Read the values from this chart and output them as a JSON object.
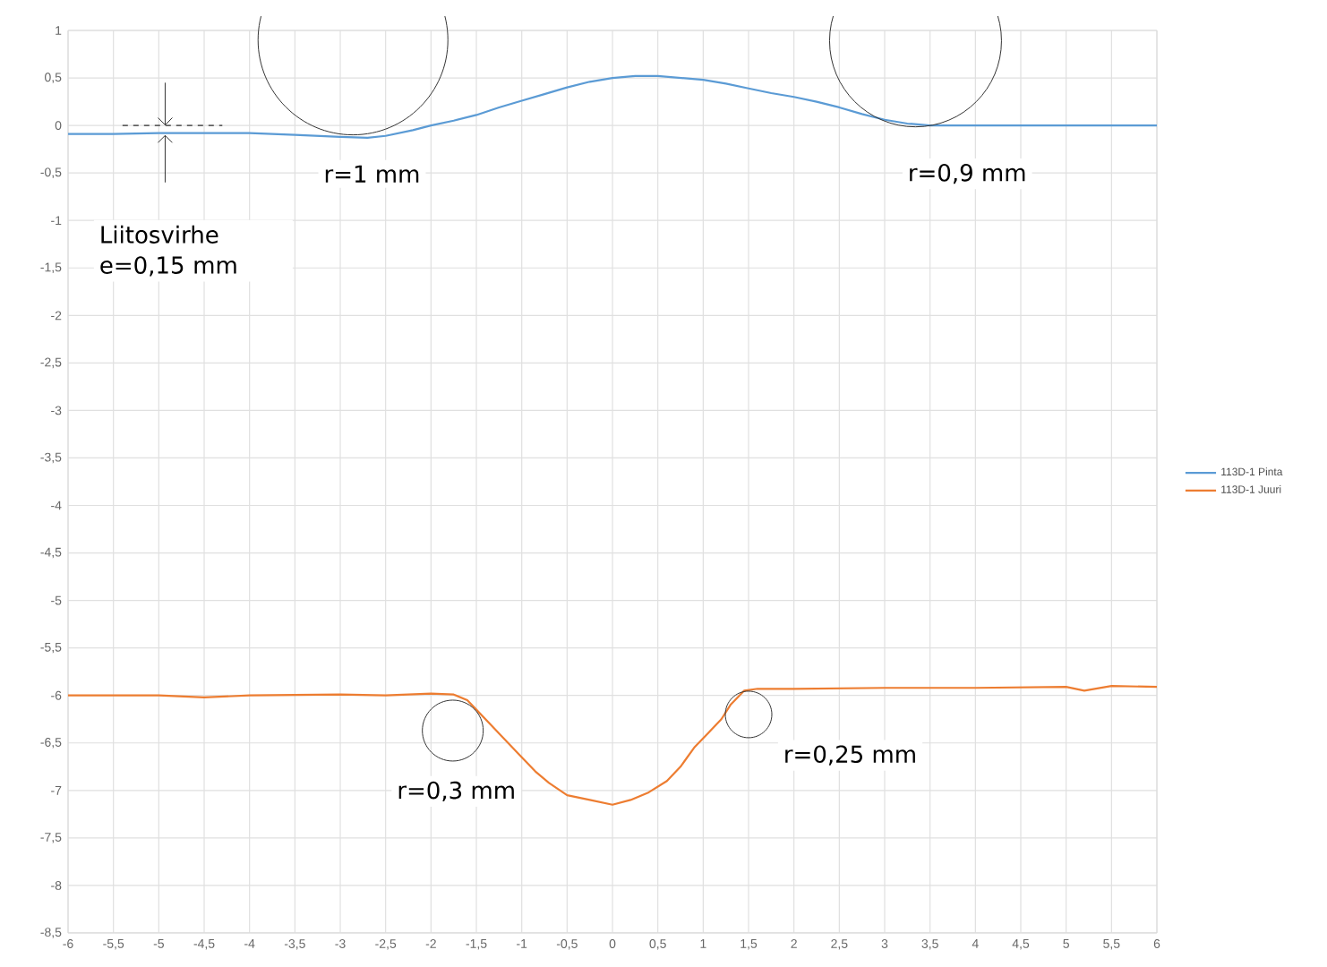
{
  "chart_data": {
    "type": "line",
    "x": [
      -6,
      -5.5,
      -5,
      -4.5,
      -4,
      -3.5,
      -3,
      -2.7,
      -2.5,
      -2.2,
      -2,
      -1.75,
      -1.5,
      -1.25,
      -1,
      -0.75,
      -0.5,
      -0.25,
      0,
      0.25,
      0.5,
      0.75,
      1,
      1.25,
      1.5,
      1.75,
      2,
      2.25,
      2.5,
      2.75,
      3,
      3.25,
      3.5,
      4,
      4.5,
      5,
      5.5,
      6
    ],
    "series": [
      {
        "name": "113D-1 Pinta",
        "color": "#5b9bd5",
        "values": [
          -0.09,
          -0.09,
          -0.08,
          -0.08,
          -0.08,
          -0.1,
          -0.12,
          -0.13,
          -0.11,
          -0.05,
          0.0,
          0.05,
          0.11,
          0.19,
          0.26,
          0.33,
          0.4,
          0.46,
          0.5,
          0.52,
          0.52,
          0.5,
          0.48,
          0.44,
          0.39,
          0.34,
          0.3,
          0.25,
          0.19,
          0.12,
          0.06,
          0.02,
          0.0,
          0.0,
          0.0,
          0.0,
          0.0,
          0.0
        ]
      },
      {
        "name": "113D-1 Juuri",
        "color": "#ed7d31",
        "x": [
          -6,
          -5,
          -4.5,
          -4,
          -3,
          -2.5,
          -2,
          -1.75,
          -1.6,
          -1.5,
          -1.35,
          -1.2,
          -1,
          -0.85,
          -0.7,
          -0.5,
          -0.25,
          0,
          0.2,
          0.4,
          0.6,
          0.75,
          0.9,
          1.05,
          1.2,
          1.3,
          1.45,
          1.6,
          2,
          3,
          4,
          5,
          5.2,
          5.5,
          6
        ],
        "values": [
          -6.0,
          -6.0,
          -6.02,
          -6.0,
          -5.99,
          -6.0,
          -5.98,
          -5.99,
          -6.05,
          -6.15,
          -6.3,
          -6.45,
          -6.65,
          -6.8,
          -6.92,
          -7.05,
          -7.1,
          -7.15,
          -7.1,
          -7.02,
          -6.9,
          -6.75,
          -6.55,
          -6.4,
          -6.25,
          -6.1,
          -5.95,
          -5.93,
          -5.93,
          -5.92,
          -5.92,
          -5.91,
          -5.95,
          -5.9,
          -5.91
        ]
      }
    ],
    "xlim": [
      -6,
      6
    ],
    "ylim": [
      -8.5,
      1
    ],
    "xticks": [
      -6,
      {
        "value": -5.5,
        "label": "-5,5"
      },
      -5,
      {
        "value": -4.5,
        "label": "-4,5"
      },
      -4,
      {
        "value": -3.5,
        "label": "-3,5"
      },
      -3,
      {
        "value": -2.5,
        "label": "-2,5"
      },
      -2,
      {
        "value": -1.5,
        "label": "-1,5"
      },
      -1,
      {
        "value": -0.5,
        "label": "-0,5"
      },
      0,
      {
        "value": 0.5,
        "label": "0,5"
      },
      1,
      {
        "value": 1.5,
        "label": "1,5"
      },
      2,
      {
        "value": 2.5,
        "label": "2,5"
      },
      3,
      {
        "value": 3.5,
        "label": "3,5"
      },
      4,
      {
        "value": 4.5,
        "label": "4,5"
      },
      5,
      {
        "value": 5.5,
        "label": "5,5"
      },
      6
    ],
    "yticks": [
      1,
      {
        "value": 0.5,
        "label": "0,5"
      },
      0,
      {
        "value": -0.5,
        "label": "-0,5"
      },
      -1,
      {
        "value": -1.5,
        "label": "-1,5"
      },
      -2,
      {
        "value": -2.5,
        "label": "-2,5"
      },
      -3,
      {
        "value": -3.5,
        "label": "-3,5"
      },
      -4,
      {
        "value": -4.5,
        "label": "-4,5"
      },
      -5,
      {
        "value": -5.5,
        "label": "-5,5"
      },
      -6,
      {
        "value": -6.5,
        "label": "-6,5"
      },
      -7,
      {
        "value": -7.5,
        "label": "-7,5"
      },
      -8,
      {
        "value": -8.5,
        "label": "-8,5"
      }
    ],
    "annotations": [
      "r=1 mm",
      "r=0,9 mm",
      "r=0,3 mm",
      "r=0,25 mm",
      "Liitosvirhe e=0,15 mm"
    ],
    "grid": true,
    "legend": "right",
    "marker": "none",
    "line_style": "solid"
  }
}
